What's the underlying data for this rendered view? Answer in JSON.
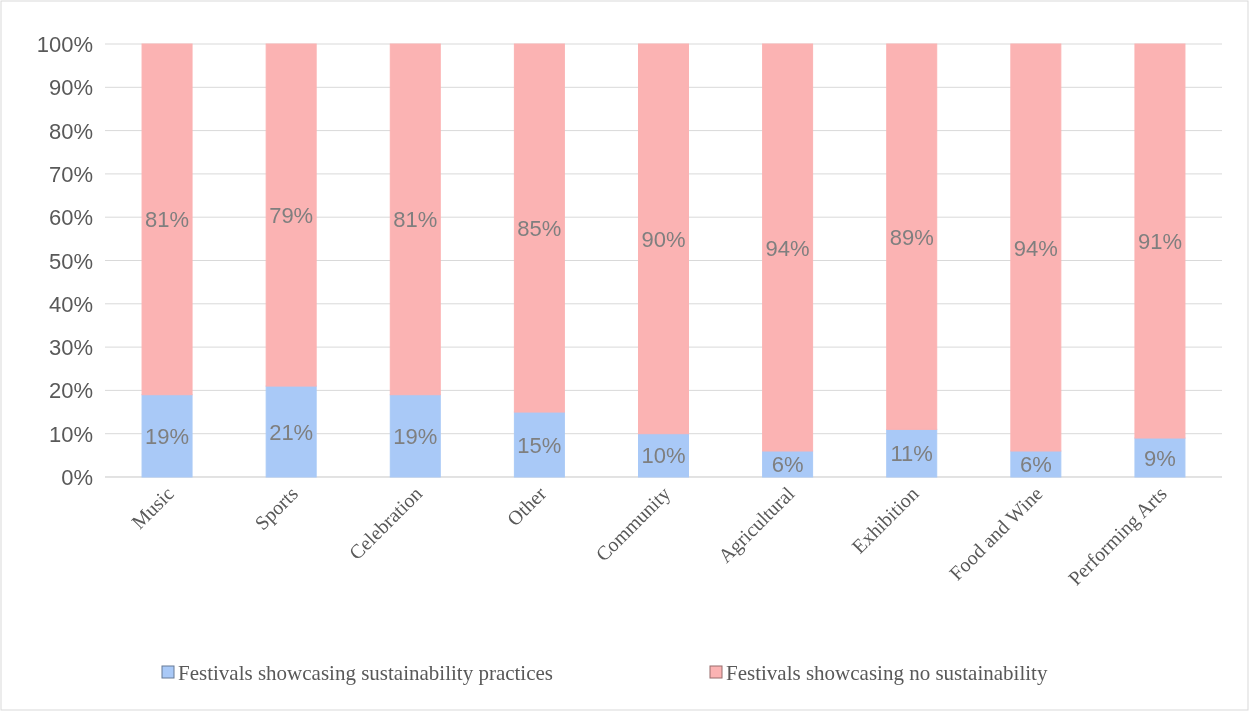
{
  "chart_data": {
    "type": "bar",
    "stacked": true,
    "grid": "y",
    "legend": "bottom",
    "categories": [
      "Music",
      "Sports",
      "Celebration",
      "Other",
      "Community",
      "Agricultural",
      "Exhibition",
      "Food and Wine",
      "Performing Arts"
    ],
    "series": [
      {
        "name": "Festivals showcasing sustainability practices",
        "color": "#a9c9f7",
        "values": [
          19,
          21,
          19,
          15,
          10,
          6,
          11,
          6,
          9
        ],
        "value_labels": [
          "19%",
          "21%",
          "19%",
          "15%",
          "10%",
          "6%",
          "11%",
          "6%",
          "9%"
        ]
      },
      {
        "name": "Festivals showcasing no sustainability",
        "color": "#fbb3b3",
        "values": [
          81,
          79,
          81,
          85,
          90,
          94,
          89,
          94,
          91
        ],
        "value_labels": [
          "81%",
          "79%",
          "81%",
          "85%",
          "90%",
          "94%",
          "89%",
          "94%",
          "91%"
        ]
      }
    ],
    "ylim": [
      0,
      100
    ],
    "yticks": [
      {
        "value": 0,
        "label": "0%"
      },
      {
        "value": 10,
        "label": "10%"
      },
      {
        "value": 20,
        "label": "20%"
      },
      {
        "value": 30,
        "label": "30%"
      },
      {
        "value": 40,
        "label": "40%"
      },
      {
        "value": 50,
        "label": "50%"
      },
      {
        "value": 60,
        "label": "60%"
      },
      {
        "value": 70,
        "label": "70%"
      },
      {
        "value": 80,
        "label": "80%"
      },
      {
        "value": 90,
        "label": "90%"
      },
      {
        "value": 100,
        "label": "100%"
      }
    ]
  }
}
